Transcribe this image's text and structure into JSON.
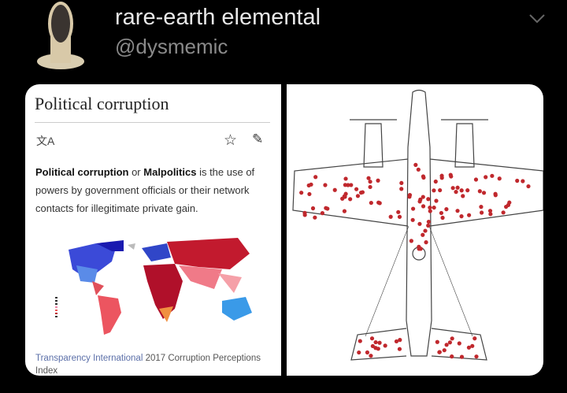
{
  "tweet": {
    "display_name": "rare-earth elemental",
    "handle": "@dysmemic",
    "menu_icon": "chevron-down-icon"
  },
  "wiki": {
    "title": "Political corruption",
    "language_icon": "translate-icon",
    "star_icon": "star-icon",
    "edit_icon": "pencil-icon",
    "lang_glyph": "文A",
    "intro_bold_1": "Political corruption",
    "intro_or": " or ",
    "intro_bold_2": "Malpolitics",
    "intro_rest": " is the use of powers by government officials or their network contacts for illegitimate private gain.",
    "caption_link": "Transparency International",
    "caption_rest": " 2017 Corruption Perceptions Index"
  },
  "plane": {
    "dot_color": "#c0282d"
  }
}
